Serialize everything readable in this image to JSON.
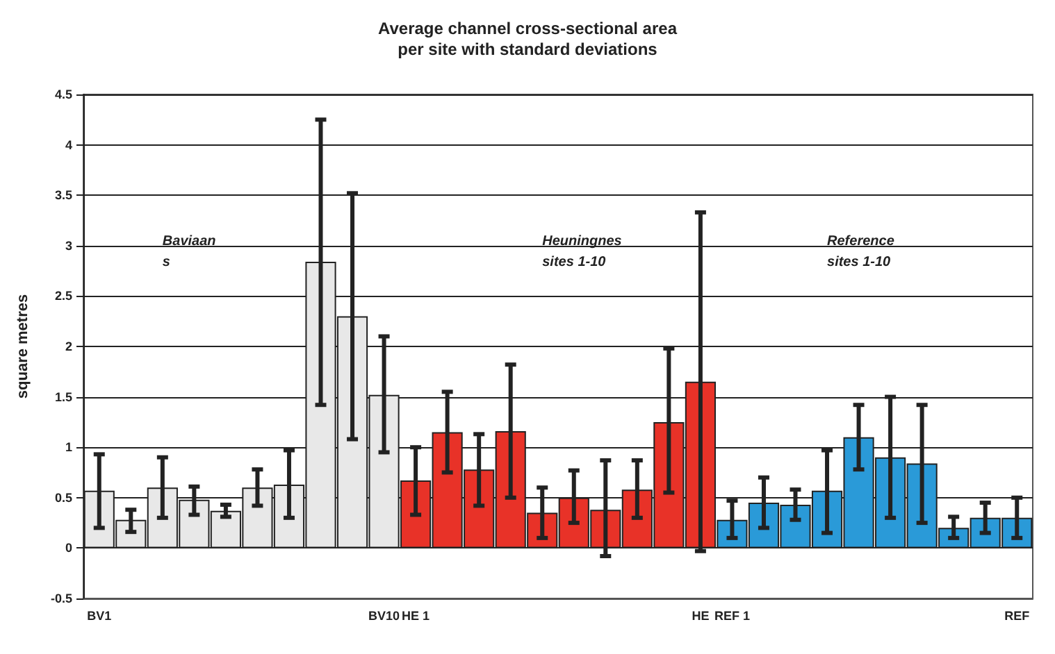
{
  "chart_data": {
    "type": "bar",
    "title": "Average channel cross-sectional area\nper site with standard deviations",
    "ylabel": "square metres",
    "categories": [
      "BV1",
      null,
      null,
      null,
      null,
      null,
      null,
      null,
      null,
      "BV10",
      "HE 1",
      null,
      null,
      null,
      null,
      null,
      null,
      null,
      null,
      "HE",
      "REF 1",
      null,
      null,
      null,
      null,
      null,
      null,
      null,
      null,
      "REF"
    ],
    "values": [
      0.57,
      0.28,
      0.6,
      0.48,
      0.37,
      0.6,
      0.63,
      2.84,
      2.3,
      1.52,
      0.67,
      1.15,
      0.78,
      1.16,
      0.35,
      0.5,
      0.38,
      0.58,
      1.25,
      1.65,
      0.28,
      0.45,
      0.43,
      0.57,
      1.1,
      0.9,
      0.84,
      0.2,
      0.3,
      0.3
    ],
    "errors": [
      [
        0.2,
        0.93
      ],
      [
        0.16,
        0.38
      ],
      [
        0.3,
        0.9
      ],
      [
        0.33,
        0.61
      ],
      [
        0.31,
        0.43
      ],
      [
        0.42,
        0.78
      ],
      [
        0.3,
        0.97
      ],
      [
        1.42,
        4.25
      ],
      [
        1.08,
        3.52
      ],
      [
        0.95,
        2.1
      ],
      [
        0.33,
        1.0
      ],
      [
        0.75,
        1.55
      ],
      [
        0.42,
        1.13
      ],
      [
        0.5,
        1.82
      ],
      [
        0.1,
        0.6
      ],
      [
        0.25,
        0.77
      ],
      [
        -0.08,
        0.87
      ],
      [
        0.3,
        0.87
      ],
      [
        0.55,
        1.98
      ],
      [
        -0.03,
        3.33
      ],
      [
        0.1,
        0.47
      ],
      [
        0.2,
        0.7
      ],
      [
        0.28,
        0.58
      ],
      [
        0.15,
        0.97
      ],
      [
        0.78,
        1.42
      ],
      [
        0.3,
        1.5
      ],
      [
        0.25,
        1.42
      ],
      [
        0.1,
        0.31
      ],
      [
        0.15,
        0.45
      ],
      [
        0.1,
        0.5
      ]
    ],
    "colors": [
      "#e8e8e8",
      "#e8e8e8",
      "#e8e8e8",
      "#e8e8e8",
      "#e8e8e8",
      "#e8e8e8",
      "#e8e8e8",
      "#e8e8e8",
      "#e8e8e8",
      "#e8e8e8",
      "#e83228",
      "#e83228",
      "#e83228",
      "#e83228",
      "#e83228",
      "#e83228",
      "#e83228",
      "#e83228",
      "#e83228",
      "#e83228",
      "#2a9ad8",
      "#2a9ad8",
      "#2a9ad8",
      "#2a9ad8",
      "#2a9ad8",
      "#2a9ad8",
      "#2a9ad8",
      "#2a9ad8",
      "#2a9ad8",
      "#2a9ad8"
    ],
    "ylim": [
      -0.5,
      4.5
    ],
    "yticks": [
      -0.5,
      0,
      0.5,
      1,
      1.5,
      2,
      2.5,
      3,
      3.5,
      4,
      4.5
    ],
    "grid": "y",
    "annotations": [
      "Baviaan\ns",
      "Heuningnes\nsites 1-10",
      "Reference\nsites 1-10"
    ]
  }
}
